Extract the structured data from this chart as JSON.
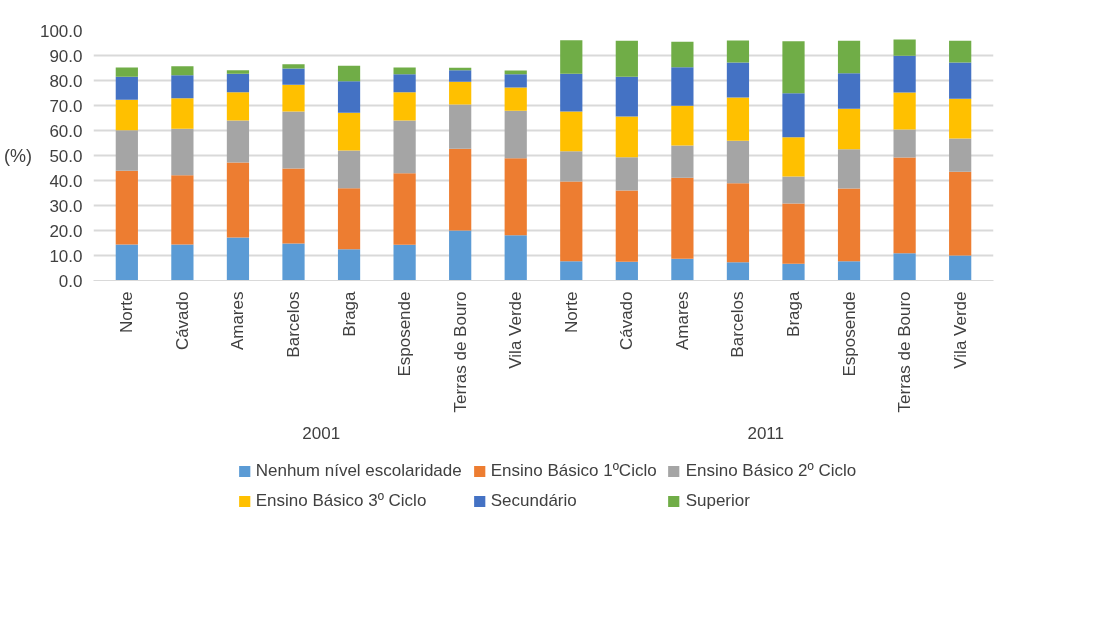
{
  "chart_data": {
    "type": "bar",
    "stacked": true,
    "ylabel": "(%)",
    "categories": [
      "Norte",
      "Cávado",
      "Amares",
      "Barcelos",
      "Braga",
      "Esposende",
      "Terras de Bouro",
      "Vila Verde",
      "Norte",
      "Cávado",
      "Amares",
      "Barcelos",
      "Braga",
      "Esposende",
      "Terras de Bouro",
      "Vila Verde"
    ],
    "annotations": [
      "2001",
      "2011"
    ],
    "series": [
      {
        "name": "Nenhum nível escolaridade",
        "color": "#5b9bd5",
        "values": [
          14.4,
          14.4,
          17.2,
          14.8,
          12.5,
          14.3,
          20.0,
          18.1,
          7.7,
          7.5,
          8.7,
          7.3,
          6.7,
          7.7,
          10.9,
          10.0
        ]
      },
      {
        "name": "Ensino Básico 1ºCiclo",
        "color": "#ed7d31",
        "values": [
          29.5,
          27.7,
          30.0,
          30.0,
          24.4,
          28.6,
          32.7,
          30.8,
          31.9,
          28.5,
          32.4,
          31.6,
          24.1,
          29.1,
          38.3,
          33.5
        ]
      },
      {
        "name": "Ensino Básico 2º Ciclo",
        "color": "#a5a5a5",
        "values": [
          16.2,
          18.6,
          16.8,
          22.8,
          15.1,
          21.1,
          17.7,
          19.0,
          12.1,
          13.3,
          12.9,
          17.0,
          10.8,
          15.7,
          11.2,
          13.3
        ]
      },
      {
        "name": "Ensino Básico 3º Ciclo",
        "color": "#ffc000",
        "values": [
          12.2,
          12.2,
          11.3,
          10.7,
          15.1,
          11.3,
          9.1,
          9.3,
          15.9,
          16.3,
          15.9,
          17.3,
          15.7,
          16.2,
          14.8,
          15.9
        ]
      },
      {
        "name": "Secundário",
        "color": "#4472c4",
        "values": [
          9.2,
          9.2,
          7.4,
          6.5,
          12.6,
          7.2,
          4.6,
          5.3,
          15.1,
          15.9,
          15.4,
          14.0,
          17.6,
          14.2,
          14.7,
          14.5
        ]
      },
      {
        "name": "Superior",
        "color": "#70ad47",
        "values": [
          3.7,
          3.6,
          1.4,
          1.7,
          6.2,
          2.7,
          1.0,
          1.5,
          13.4,
          14.4,
          10.2,
          8.8,
          20.8,
          13.0,
          6.5,
          8.7
        ]
      }
    ],
    "ylim": [
      0,
      100
    ],
    "yticks": [
      {
        "value": 0,
        "label": "0.0"
      },
      {
        "value": 10,
        "label": "10.0"
      },
      {
        "value": 20,
        "label": "20.0"
      },
      {
        "value": 30,
        "label": "30.0"
      },
      {
        "value": 40,
        "label": "40.0"
      },
      {
        "value": 50,
        "label": "50.0"
      },
      {
        "value": 60,
        "label": "60.0"
      },
      {
        "value": 70,
        "label": "70.0"
      },
      {
        "value": 80,
        "label": "80.0"
      },
      {
        "value": 90,
        "label": "90.0"
      },
      {
        "value": 100,
        "label": "100.0"
      }
    ],
    "grid": "y",
    "legend": "bottom"
  }
}
